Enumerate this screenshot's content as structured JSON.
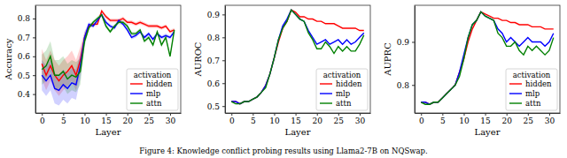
{
  "caption": "Figure 4: Knowledge conflict probing results using Llama2-7B on NQSwap.",
  "chart_data": [
    {
      "type": "line",
      "xlabel": "Layer",
      "ylabel": "Accuracy",
      "x": [
        0,
        1,
        2,
        3,
        4,
        5,
        6,
        7,
        8,
        9,
        10,
        11,
        12,
        13,
        14,
        15,
        16,
        17,
        18,
        19,
        20,
        21,
        22,
        23,
        24,
        25,
        26,
        27,
        28,
        29,
        30,
        31
      ],
      "xlim": [
        -1.5,
        32.5
      ],
      "xticks": [
        0,
        5,
        10,
        15,
        20,
        25,
        30
      ],
      "ylim": [
        0.3,
        0.87
      ],
      "yticks": [
        0.4,
        0.5,
        0.6,
        0.7,
        0.8
      ],
      "grid": false,
      "legend": "lower right",
      "legend_title": "activation",
      "series": [
        {
          "name": "hidden",
          "color": "#ff0000",
          "values": [
            0.56,
            0.5,
            0.55,
            0.5,
            0.47,
            0.5,
            0.52,
            0.55,
            0.5,
            0.58,
            0.7,
            0.76,
            0.77,
            0.77,
            0.84,
            0.81,
            0.79,
            0.79,
            0.79,
            0.8,
            0.78,
            0.78,
            0.77,
            0.78,
            0.77,
            0.76,
            0.76,
            0.76,
            0.75,
            0.76,
            0.73,
            0.74
          ],
          "error": [
            0.08,
            0.08,
            0.08,
            0.08,
            0.08,
            0.08,
            0.08,
            0.08,
            0.08,
            0.07,
            0.03,
            0.01,
            0.01,
            0.01,
            0.01,
            0.01,
            0.01,
            0.01,
            0.01,
            0.01,
            0.01,
            0.01,
            0.01,
            0.01,
            0.01,
            0.01,
            0.01,
            0.01,
            0.01,
            0.01,
            0.01,
            0.01
          ]
        },
        {
          "name": "mlp",
          "color": "#0000ff",
          "values": [
            0.5,
            0.47,
            0.5,
            0.43,
            0.42,
            0.45,
            0.43,
            0.46,
            0.45,
            0.55,
            0.7,
            0.77,
            0.76,
            0.79,
            0.82,
            0.78,
            0.76,
            0.75,
            0.79,
            0.77,
            0.74,
            0.7,
            0.71,
            0.73,
            0.7,
            0.72,
            0.69,
            0.72,
            0.7,
            0.71,
            0.7,
            0.73
          ],
          "error": [
            0.08,
            0.08,
            0.08,
            0.08,
            0.08,
            0.08,
            0.08,
            0.08,
            0.08,
            0.07,
            0.03,
            0.01,
            0.01,
            0.01,
            0.01,
            0.01,
            0.01,
            0.01,
            0.01,
            0.01,
            0.01,
            0.01,
            0.01,
            0.01,
            0.01,
            0.01,
            0.01,
            0.01,
            0.01,
            0.01,
            0.01,
            0.01
          ]
        },
        {
          "name": "attn",
          "color": "#008000",
          "values": [
            0.53,
            0.55,
            0.6,
            0.5,
            0.5,
            0.52,
            0.48,
            0.5,
            0.49,
            0.52,
            0.68,
            0.75,
            0.78,
            0.8,
            0.82,
            0.76,
            0.73,
            0.76,
            0.78,
            0.78,
            0.76,
            0.72,
            0.72,
            0.74,
            0.68,
            0.7,
            0.66,
            0.73,
            0.66,
            0.7,
            0.6,
            0.74
          ],
          "error": [
            0.08,
            0.08,
            0.08,
            0.08,
            0.08,
            0.08,
            0.08,
            0.08,
            0.08,
            0.07,
            0.03,
            0.01,
            0.01,
            0.01,
            0.01,
            0.01,
            0.01,
            0.01,
            0.01,
            0.01,
            0.01,
            0.01,
            0.01,
            0.01,
            0.01,
            0.01,
            0.01,
            0.01,
            0.01,
            0.01,
            0.01,
            0.01
          ]
        }
      ]
    },
    {
      "type": "line",
      "xlabel": "Layer",
      "ylabel": "AUROC",
      "x": [
        0,
        1,
        2,
        3,
        4,
        5,
        6,
        7,
        8,
        9,
        10,
        11,
        12,
        13,
        14,
        15,
        16,
        17,
        18,
        19,
        20,
        21,
        22,
        23,
        24,
        25,
        26,
        27,
        28,
        29,
        30,
        31
      ],
      "xlim": [
        -1.5,
        32.5
      ],
      "xticks": [
        0,
        5,
        10,
        15,
        20,
        25,
        30
      ],
      "ylim": [
        0.47,
        0.94
      ],
      "yticks": [
        0.5,
        0.6,
        0.7,
        0.8,
        0.9
      ],
      "grid": false,
      "legend": "lower right",
      "legend_title": "activation",
      "series": [
        {
          "name": "hidden",
          "color": "#ff0000",
          "values": [
            0.52,
            0.52,
            0.51,
            0.52,
            0.52,
            0.53,
            0.54,
            0.56,
            0.59,
            0.64,
            0.71,
            0.78,
            0.84,
            0.87,
            0.92,
            0.91,
            0.89,
            0.89,
            0.88,
            0.88,
            0.87,
            0.87,
            0.86,
            0.86,
            0.86,
            0.85,
            0.84,
            0.84,
            0.84,
            0.84,
            0.83,
            0.83
          ]
        },
        {
          "name": "mlp",
          "color": "#0000ff",
          "values": [
            0.52,
            0.52,
            0.51,
            0.52,
            0.52,
            0.53,
            0.54,
            0.56,
            0.59,
            0.64,
            0.71,
            0.79,
            0.85,
            0.88,
            0.92,
            0.9,
            0.88,
            0.87,
            0.83,
            0.8,
            0.77,
            0.78,
            0.79,
            0.77,
            0.78,
            0.79,
            0.77,
            0.79,
            0.77,
            0.78,
            0.8,
            0.82
          ]
        },
        {
          "name": "attn",
          "color": "#008000",
          "values": [
            0.52,
            0.51,
            0.51,
            0.52,
            0.52,
            0.53,
            0.54,
            0.56,
            0.58,
            0.64,
            0.71,
            0.79,
            0.84,
            0.87,
            0.92,
            0.9,
            0.88,
            0.87,
            0.82,
            0.79,
            0.75,
            0.75,
            0.78,
            0.76,
            0.73,
            0.76,
            0.74,
            0.76,
            0.74,
            0.74,
            0.77,
            0.81
          ]
        }
      ]
    },
    {
      "type": "line",
      "xlabel": "Layer",
      "ylabel": "AUPRC",
      "x": [
        0,
        1,
        2,
        3,
        4,
        5,
        6,
        7,
        8,
        9,
        10,
        11,
        12,
        13,
        14,
        15,
        16,
        17,
        18,
        19,
        20,
        21,
        22,
        23,
        24,
        25,
        26,
        27,
        28,
        29,
        30,
        31
      ],
      "xlim": [
        -1.5,
        32.5
      ],
      "xticks": [
        0,
        5,
        10,
        15,
        20,
        25,
        30
      ],
      "ylim": [
        0.735,
        0.985
      ],
      "yticks": [
        0.8,
        0.9
      ],
      "grid": false,
      "legend": "lower right",
      "legend_title": "activation",
      "series": [
        {
          "name": "hidden",
          "color": "#ff0000",
          "values": [
            0.76,
            0.76,
            0.755,
            0.76,
            0.76,
            0.77,
            0.78,
            0.79,
            0.8,
            0.83,
            0.86,
            0.9,
            0.93,
            0.95,
            0.97,
            0.965,
            0.96,
            0.955,
            0.955,
            0.95,
            0.95,
            0.945,
            0.945,
            0.94,
            0.94,
            0.94,
            0.935,
            0.935,
            0.935,
            0.93,
            0.93,
            0.93
          ]
        },
        {
          "name": "mlp",
          "color": "#0000ff",
          "values": [
            0.76,
            0.76,
            0.755,
            0.76,
            0.76,
            0.77,
            0.78,
            0.79,
            0.8,
            0.83,
            0.87,
            0.91,
            0.94,
            0.95,
            0.97,
            0.96,
            0.955,
            0.95,
            0.93,
            0.92,
            0.9,
            0.91,
            0.9,
            0.89,
            0.9,
            0.91,
            0.9,
            0.9,
            0.9,
            0.89,
            0.9,
            0.92
          ]
        },
        {
          "name": "attn",
          "color": "#008000",
          "values": [
            0.76,
            0.755,
            0.755,
            0.76,
            0.76,
            0.77,
            0.78,
            0.79,
            0.8,
            0.82,
            0.86,
            0.91,
            0.94,
            0.95,
            0.97,
            0.96,
            0.955,
            0.95,
            0.92,
            0.91,
            0.89,
            0.89,
            0.9,
            0.88,
            0.87,
            0.89,
            0.88,
            0.89,
            0.88,
            0.87,
            0.88,
            0.91
          ]
        }
      ]
    }
  ]
}
